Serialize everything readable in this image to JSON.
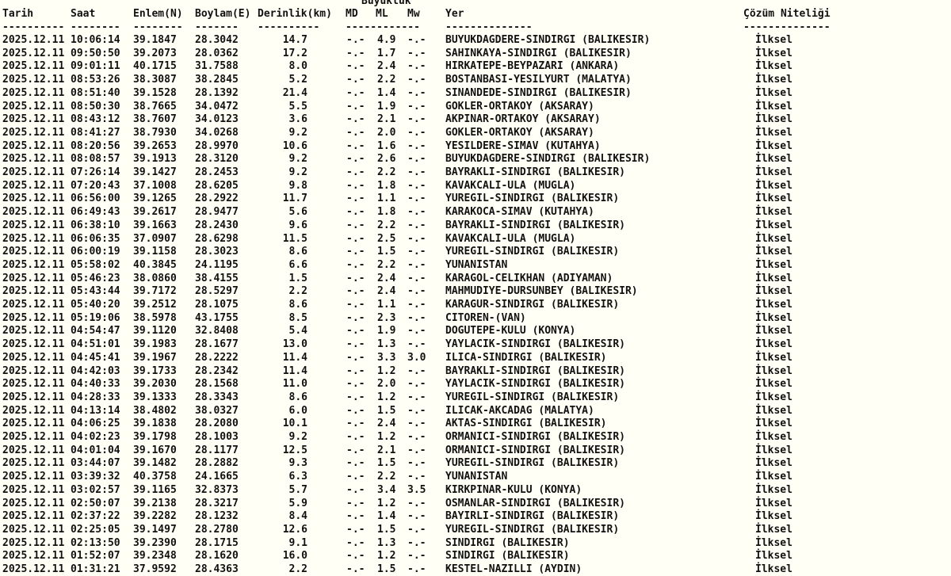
{
  "header": {
    "magnitude_group": "Büyüklük",
    "columns": [
      "Tarih",
      "Saat",
      "Enlem(N)",
      "Boylam(E)",
      "Derinlik(km)",
      "MD",
      "ML",
      "Mw",
      "Yer",
      "Çözüm Niteliği"
    ],
    "dashes": [
      "----------",
      "--------",
      "--------",
      "-------",
      "----------",
      "------------",
      "--------------",
      "--------------"
    ]
  },
  "rows": [
    [
      "2025.12.11",
      "10:06:14",
      "39.1847",
      "28.3042",
      "14.7",
      "-.-",
      "4.9",
      "-.-",
      "BUYUKDAGDERE-SINDIRGI (BALIKESIR)",
      "İlksel"
    ],
    [
      "2025.12.11",
      "09:50:50",
      "39.2073",
      "28.0362",
      "17.2",
      "-.-",
      "1.7",
      "-.-",
      "SAHINKAYA-SINDIRGI (BALIKESIR)",
      "İlksel"
    ],
    [
      "2025.12.11",
      "09:01:11",
      "40.1715",
      "31.7588",
      "8.0",
      "-.-",
      "2.4",
      "-.-",
      "HIRKATEPE-BEYPAZARI (ANKARA)",
      "İlksel"
    ],
    [
      "2025.12.11",
      "08:53:26",
      "38.3087",
      "38.2845",
      "5.2",
      "-.-",
      "2.2",
      "-.-",
      "BOSTANBASI-YESILYURT (MALATYA)",
      "İlksel"
    ],
    [
      "2025.12.11",
      "08:51:40",
      "39.1528",
      "28.1392",
      "21.4",
      "-.-",
      "1.4",
      "-.-",
      "SINANDEDE-SINDIRGI (BALIKESIR)",
      "İlksel"
    ],
    [
      "2025.12.11",
      "08:50:30",
      "38.7665",
      "34.0472",
      "5.5",
      "-.-",
      "1.9",
      "-.-",
      "GOKLER-ORTAKOY (AKSARAY)",
      "İlksel"
    ],
    [
      "2025.12.11",
      "08:43:12",
      "38.7607",
      "34.0123",
      "3.6",
      "-.-",
      "2.1",
      "-.-",
      "AKPINAR-ORTAKOY (AKSARAY)",
      "İlksel"
    ],
    [
      "2025.12.11",
      "08:41:27",
      "38.7930",
      "34.0268",
      "9.2",
      "-.-",
      "2.0",
      "-.-",
      "GOKLER-ORTAKOY (AKSARAY)",
      "İlksel"
    ],
    [
      "2025.12.11",
      "08:20:56",
      "39.2653",
      "28.9970",
      "10.6",
      "-.-",
      "1.6",
      "-.-",
      "YESILDERE-SIMAV (KUTAHYA)",
      "İlksel"
    ],
    [
      "2025.12.11",
      "08:08:57",
      "39.1913",
      "28.3120",
      "9.2",
      "-.-",
      "2.6",
      "-.-",
      "BUYUKDAGDERE-SINDIRGI (BALIKESIR)",
      "İlksel"
    ],
    [
      "2025.12.11",
      "07:26:14",
      "39.1427",
      "28.2453",
      "9.2",
      "-.-",
      "2.2",
      "-.-",
      "BAYRAKLI-SINDIRGI (BALIKESIR)",
      "İlksel"
    ],
    [
      "2025.12.11",
      "07:20:43",
      "37.1008",
      "28.6205",
      "9.8",
      "-.-",
      "1.8",
      "-.-",
      "KAVAKCALI-ULA (MUGLA)",
      "İlksel"
    ],
    [
      "2025.12.11",
      "06:56:00",
      "39.1265",
      "28.2922",
      "11.7",
      "-.-",
      "1.1",
      "-.-",
      "YUREGIL-SINDIRGI (BALIKESIR)",
      "İlksel"
    ],
    [
      "2025.12.11",
      "06:49:43",
      "39.2617",
      "28.9477",
      "5.6",
      "-.-",
      "1.8",
      "-.-",
      "KARAKOCA-SIMAV (KUTAHYA)",
      "İlksel"
    ],
    [
      "2025.12.11",
      "06:38:10",
      "39.1663",
      "28.2430",
      "9.6",
      "-.-",
      "2.2",
      "-.-",
      "BAYRAKLI-SINDIRGI (BALIKESIR)",
      "İlksel"
    ],
    [
      "2025.12.11",
      "06:06:35",
      "37.0907",
      "28.6298",
      "11.5",
      "-.-",
      "2.5",
      "-.-",
      "KAVAKCALI-ULA (MUGLA)",
      "İlksel"
    ],
    [
      "2025.12.11",
      "06:00:19",
      "39.1158",
      "28.3023",
      "8.6",
      "-.-",
      "1.5",
      "-.-",
      "YUREGIL-SINDIRGI (BALIKESIR)",
      "İlksel"
    ],
    [
      "2025.12.11",
      "05:58:02",
      "40.3845",
      "24.1195",
      "6.6",
      "-.-",
      "2.2",
      "-.-",
      "YUNANISTAN",
      "İlksel"
    ],
    [
      "2025.12.11",
      "05:46:23",
      "38.0860",
      "38.4155",
      "1.5",
      "-.-",
      "2.4",
      "-.-",
      "KARAGOL-CELIKHAN (ADIYAMAN)",
      "İlksel"
    ],
    [
      "2025.12.11",
      "05:43:44",
      "39.7172",
      "28.5297",
      "2.2",
      "-.-",
      "2.4",
      "-.-",
      "MAHMUDIYE-DURSUNBEY (BALIKESIR)",
      "İlksel"
    ],
    [
      "2025.12.11",
      "05:40:20",
      "39.2512",
      "28.1075",
      "8.6",
      "-.-",
      "1.1",
      "-.-",
      "KARAGUR-SINDIRGI (BALIKESIR)",
      "İlksel"
    ],
    [
      "2025.12.11",
      "05:19:06",
      "38.5978",
      "43.1755",
      "8.5",
      "-.-",
      "2.3",
      "-.-",
      "CITOREN-(VAN)",
      "İlksel"
    ],
    [
      "2025.12.11",
      "04:54:47",
      "39.1120",
      "32.8408",
      "5.4",
      "-.-",
      "1.9",
      "-.-",
      "DOGUTEPE-KULU (KONYA)",
      "İlksel"
    ],
    [
      "2025.12.11",
      "04:51:01",
      "39.1983",
      "28.1677",
      "13.0",
      "-.-",
      "1.3",
      "-.-",
      "YAYLACIK-SINDIRGI (BALIKESIR)",
      "İlksel"
    ],
    [
      "2025.12.11",
      "04:45:41",
      "39.1967",
      "28.2222",
      "11.4",
      "-.-",
      "3.3",
      "3.0",
      "ILICA-SINDIRGI (BALIKESIR)",
      "İlksel"
    ],
    [
      "2025.12.11",
      "04:42:03",
      "39.1733",
      "28.2342",
      "11.4",
      "-.-",
      "1.2",
      "-.-",
      "BAYRAKLI-SINDIRGI (BALIKESIR)",
      "İlksel"
    ],
    [
      "2025.12.11",
      "04:40:33",
      "39.2030",
      "28.1568",
      "11.0",
      "-.-",
      "2.0",
      "-.-",
      "YAYLACIK-SINDIRGI (BALIKESIR)",
      "İlksel"
    ],
    [
      "2025.12.11",
      "04:28:33",
      "39.1333",
      "28.3343",
      "8.6",
      "-.-",
      "1.2",
      "-.-",
      "YUREGIL-SINDIRGI (BALIKESIR)",
      "İlksel"
    ],
    [
      "2025.12.11",
      "04:13:14",
      "38.4802",
      "38.0327",
      "6.0",
      "-.-",
      "1.5",
      "-.-",
      "ILICAK-AKCADAG (MALATYA)",
      "İlksel"
    ],
    [
      "2025.12.11",
      "04:06:25",
      "39.1838",
      "28.2080",
      "10.1",
      "-.-",
      "2.4",
      "-.-",
      "AKTAS-SINDIRGI (BALIKESIR)",
      "İlksel"
    ],
    [
      "2025.12.11",
      "04:02:23",
      "39.1798",
      "28.1003",
      "9.2",
      "-.-",
      "1.2",
      "-.-",
      "ORMANICI-SINDIRGI (BALIKESIR)",
      "İlksel"
    ],
    [
      "2025.12.11",
      "04:01:04",
      "39.1670",
      "28.1177",
      "12.5",
      "-.-",
      "2.1",
      "-.-",
      "ORMANICI-SINDIRGI (BALIKESIR)",
      "İlksel"
    ],
    [
      "2025.12.11",
      "03:44:07",
      "39.1482",
      "28.2882",
      "9.3",
      "-.-",
      "1.5",
      "-.-",
      "YUREGIL-SINDIRGI (BALIKESIR)",
      "İlksel"
    ],
    [
      "2025.12.11",
      "03:39:32",
      "40.3758",
      "24.1665",
      "6.3",
      "-.-",
      "2.2",
      "-.-",
      "YUNANISTAN",
      "İlksel"
    ],
    [
      "2025.12.11",
      "03:02:57",
      "39.1165",
      "32.8373",
      "5.7",
      "-.-",
      "3.4",
      "3.5",
      "KIRKPINAR-KULU (KONYA)",
      "İlksel"
    ],
    [
      "2025.12.11",
      "02:50:07",
      "39.2138",
      "28.3217",
      "5.9",
      "-.-",
      "1.2",
      "-.-",
      "OSMANLAR-SINDIRGI (BALIKESIR)",
      "İlksel"
    ],
    [
      "2025.12.11",
      "02:37:22",
      "39.2282",
      "28.1232",
      "8.4",
      "-.-",
      "1.4",
      "-.-",
      "BAYIRLI-SINDIRGI (BALIKESIR)",
      "İlksel"
    ],
    [
      "2025.12.11",
      "02:25:05",
      "39.1497",
      "28.2780",
      "12.6",
      "-.-",
      "1.5",
      "-.-",
      "YUREGIL-SINDIRGI (BALIKESIR)",
      "İlksel"
    ],
    [
      "2025.12.11",
      "02:13:50",
      "39.2390",
      "28.1715",
      "9.1",
      "-.-",
      "1.3",
      "-.-",
      "SINDIRGI (BALIKESIR)",
      "İlksel"
    ],
    [
      "2025.12.11",
      "01:52:07",
      "39.2348",
      "28.1620",
      "16.0",
      "-.-",
      "1.2",
      "-.-",
      "SINDIRGI (BALIKESIR)",
      "İlksel"
    ],
    [
      "2025.12.11",
      "01:31:21",
      "37.9592",
      "28.4363",
      "2.2",
      "-.-",
      "1.5",
      "-.-",
      "KESTEL-NAZILLI (AYDIN)",
      "İlksel"
    ]
  ]
}
